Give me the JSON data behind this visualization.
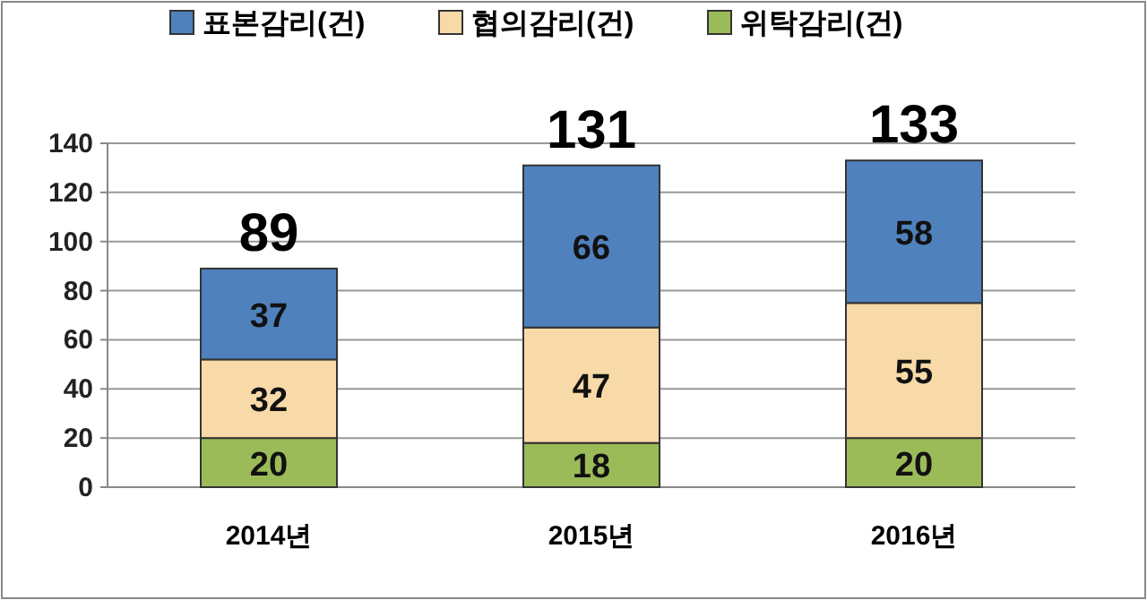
{
  "chart_data": {
    "type": "bar",
    "stacked": true,
    "categories": [
      "2014년",
      "2015년",
      "2016년"
    ],
    "series": [
      {
        "name": "위탁감리(건)",
        "color": "#9bbb59",
        "values": [
          20,
          18,
          20
        ]
      },
      {
        "name": "협의감리(건)",
        "color": "#f8d9a8",
        "values": [
          32,
          47,
          55
        ]
      },
      {
        "name": "표본감리(건)",
        "color": "#4f81bd",
        "values": [
          37,
          66,
          58
        ]
      }
    ],
    "ylim": [
      0,
      140
    ],
    "yticks": [
      0,
      20,
      40,
      60,
      80,
      100,
      120,
      140
    ],
    "grid": "y",
    "legend": "top",
    "data_labels": true,
    "totals": [
      "89",
      "131",
      "133"
    ]
  }
}
